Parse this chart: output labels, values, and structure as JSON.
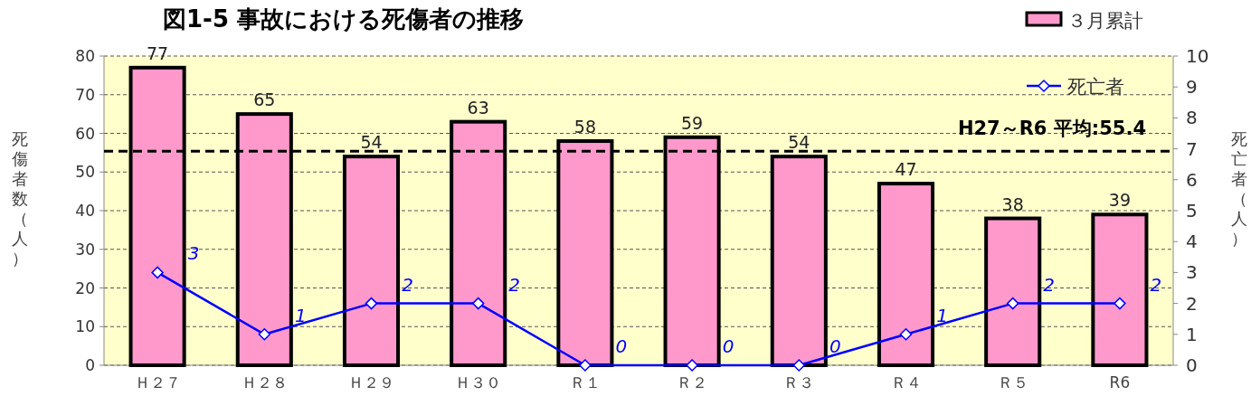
{
  "chart_data": {
    "type": "bar",
    "title": "図1-5 事故における死傷者の推移",
    "ylabel": "死傷者数（人）",
    "y2label": "死亡者（人）",
    "categories": [
      "Ｈ２７",
      "Ｈ２８",
      "Ｈ２９",
      "Ｈ３０",
      "Ｒ１",
      "Ｒ２",
      "Ｒ３",
      "Ｒ４",
      "Ｒ５",
      "R6"
    ],
    "series": [
      {
        "name": "３月累計",
        "color": "#ff99cc",
        "values": [
          77,
          65,
          54,
          63,
          58,
          59,
          54,
          47,
          38,
          39
        ]
      },
      {
        "name": "死亡者",
        "type": "line",
        "axis": "y2",
        "color": "#0000ff",
        "marker": "diamond",
        "values": [
          3,
          1,
          2,
          2,
          0,
          0,
          0,
          1,
          2,
          2
        ]
      }
    ],
    "ylim": [
      0,
      80
    ],
    "yticks": [
      0,
      10,
      20,
      30,
      40,
      50,
      60,
      70,
      80
    ],
    "y2lim": [
      0,
      10
    ],
    "y2ticks": [
      0,
      1,
      2,
      3,
      4,
      5,
      6,
      7,
      8,
      9,
      10
    ],
    "ref_lines": [
      {
        "axis": "y",
        "value": 55.4,
        "label": "H27～R6  平均:55.4",
        "line_style": "dashed",
        "color": "#000000"
      }
    ],
    "grid": "y",
    "legend": "top right",
    "data_labels": true
  }
}
